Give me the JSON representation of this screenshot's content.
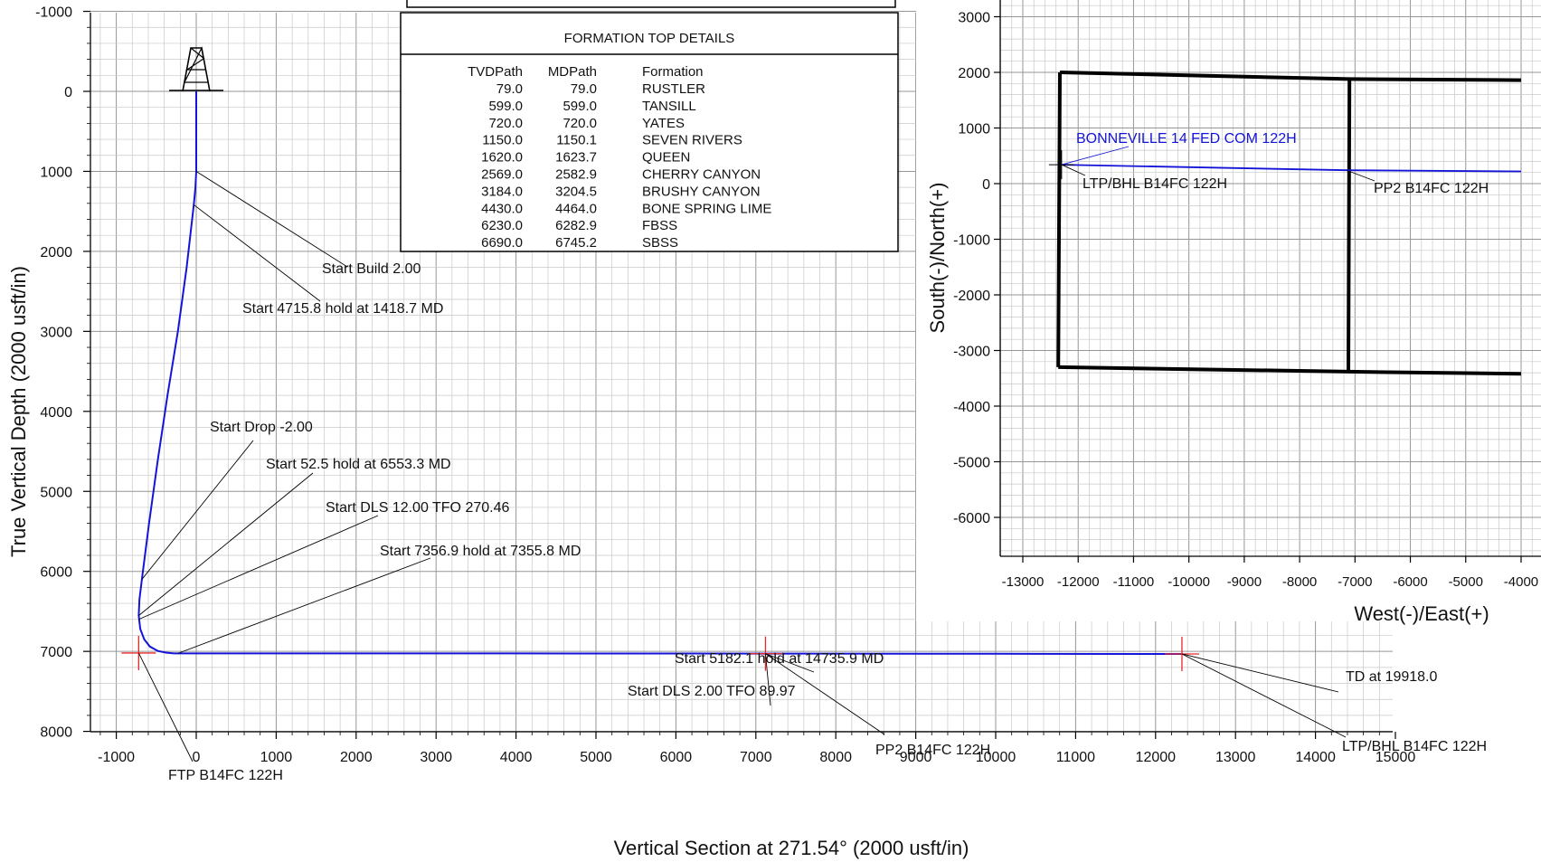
{
  "colors": {
    "wellpath": "#1414d8",
    "marker": "#e8282b",
    "grid_minor": "#c8c8c8",
    "grid_major": "#969696",
    "lease": "#000000",
    "text": "#111111",
    "well_name": "#1414d8"
  },
  "formation_table": {
    "title": "FORMATION TOP DETAILS",
    "headers": [
      "TVDPath",
      "MDPath",
      "Formation"
    ],
    "rows": [
      [
        "79.0",
        "79.0",
        "RUSTLER"
      ],
      [
        "599.0",
        "599.0",
        "TANSILL"
      ],
      [
        "720.0",
        "720.0",
        "YATES"
      ],
      [
        "1150.0",
        "1150.1",
        "SEVEN RIVERS"
      ],
      [
        "1620.0",
        "1623.7",
        "QUEEN"
      ],
      [
        "2569.0",
        "2582.9",
        "CHERRY CANYON"
      ],
      [
        "3184.0",
        "3204.5",
        "BRUSHY CANYON"
      ],
      [
        "4430.0",
        "4464.0",
        "BONE SPRING LIME"
      ],
      [
        "6230.0",
        "6282.9",
        "FBSS"
      ],
      [
        "6690.0",
        "6745.2",
        "SBSS"
      ]
    ]
  },
  "chart_data": [
    {
      "type": "line",
      "title": "",
      "xlabel": "Vertical Section at 271.54° (2000 usft/in)",
      "ylabel": "True Vertical Depth (2000 usft/in)",
      "xlim": [
        -1250,
        15000
      ],
      "ylim": [
        8000,
        -1000
      ],
      "y_inverted": true,
      "grid": true,
      "x_ticks": [
        -1000,
        0,
        1000,
        2000,
        3000,
        4000,
        5000,
        6000,
        7000,
        8000,
        9000,
        10000,
        11000,
        12000,
        13000,
        14000,
        15000
      ],
      "y_ticks": [
        -1000,
        0,
        1000,
        2000,
        3000,
        4000,
        5000,
        6000,
        7000,
        8000
      ],
      "series": [
        {
          "x": [
            0,
            0,
            -10,
            -30,
            -120,
            -230,
            -360,
            -480,
            -590,
            -680,
            -710,
            -720,
            -700,
            -650,
            -580,
            -480,
            -380,
            -280,
            1000,
            4000,
            7120,
            10000,
            12330
          ],
          "y": [
            0,
            1000,
            1200,
            1418,
            2200,
            3000,
            3800,
            4600,
            5400,
            6100,
            6350,
            6553,
            6720,
            6850,
            6940,
            6995,
            7015,
            7025,
            7026,
            7026,
            7028,
            7030,
            7032
          ]
        }
      ],
      "markers": [
        {
          "label": "FTP B14FC 122H",
          "x": -720,
          "y": 7020
        },
        {
          "label": "PP2 B14FC 122H",
          "x": 7120,
          "y": 7028
        },
        {
          "label": "LTP/BHL B14FC 122H",
          "x": 12330,
          "y": 7032
        }
      ],
      "annotations": [
        {
          "text": "Start Build 2.00",
          "x": 0,
          "y": 1000
        },
        {
          "text": "Start 4715.8 hold at 1418.7 MD",
          "x": -30,
          "y": 1418
        },
        {
          "text": "Start Drop -2.00",
          "x": -680,
          "y": 6100
        },
        {
          "text": "Start 52.5 hold at 6553.3 MD",
          "x": -720,
          "y": 6553
        },
        {
          "text": "Start DLS 12.00 TFO 270.46",
          "x": -720,
          "y": 6600
        },
        {
          "text": "Start 7356.9 hold at 7355.8 MD",
          "x": -230,
          "y": 7025
        },
        {
          "text": "Start 5182.1 hold at 14735.9 MD",
          "x": 7120,
          "y": 7028
        },
        {
          "text": "Start DLS 2.00 TFO 89.97",
          "x": 7120,
          "y": 7028
        },
        {
          "text": "TD at 19918.0",
          "x": 12330,
          "y": 7032
        }
      ]
    },
    {
      "type": "line",
      "title": "",
      "xlabel": "West(-)/East(+)",
      "ylabel": "South(-)/North(+)",
      "x_ticks": [
        -13000,
        -12000,
        -11000,
        -10000,
        -9000,
        -8000,
        -7000,
        -6000,
        -5000,
        -4000
      ],
      "y_ticks": [
        3000,
        2000,
        1000,
        0,
        -1000,
        -2000,
        -3000,
        -4000,
        -5000,
        -6000
      ],
      "grid": true,
      "well_name": "BONNEVILLE 14 FED COM 122H",
      "series": [
        {
          "x": [
            -12300,
            -7150,
            -4000
          ],
          "y": [
            340,
            240,
            220
          ]
        }
      ],
      "lease_lines": [
        {
          "x": [
            -12330,
            -7100,
            -4000
          ],
          "y": [
            2000,
            1880,
            1860
          ]
        },
        {
          "x": [
            -12360,
            -7120,
            -4000
          ],
          "y": [
            -3300,
            -3380,
            -3420
          ]
        },
        {
          "x": [
            -12330,
            -12360
          ],
          "y": [
            2000,
            -3300
          ]
        },
        {
          "x": [
            -7100,
            -7120
          ],
          "y": [
            1880,
            -3380
          ]
        }
      ],
      "markers": [
        {
          "label": "LTP/BHL B14FC 122H",
          "x": -12300,
          "y": 340
        },
        {
          "label": "PP2 B14FC 122H",
          "x": -7150,
          "y": 240
        }
      ]
    }
  ]
}
